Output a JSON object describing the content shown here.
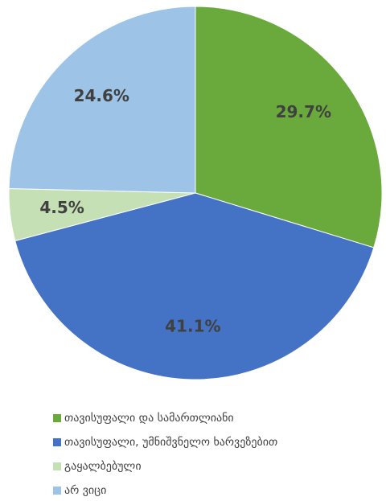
{
  "chart_data": {
    "type": "pie",
    "categories": [
      "თავისუფალი და სამართლიანი",
      "თავისუფალი, უმნიშვნელო ხარვეზებით",
      "გაყალბებული",
      "არ ვიცი"
    ],
    "values": [
      29.7,
      41.1,
      4.5,
      24.6
    ],
    "value_labels": [
      "29.7%",
      "41.1%",
      "4.5%",
      "24.6%"
    ],
    "colors": [
      "#6aaa3c",
      "#4472c4",
      "#c5e0b4",
      "#9dc3e6"
    ],
    "legend": "bottom"
  }
}
